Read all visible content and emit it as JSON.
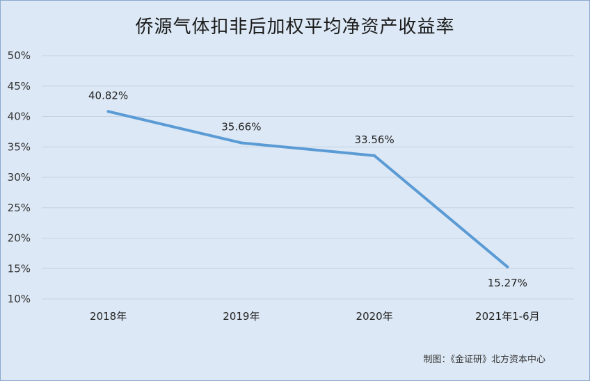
{
  "chart_data": {
    "type": "line",
    "title": "侨源气体扣非后加权平均净资产收益率",
    "categories": [
      "2018年",
      "2019年",
      "2020年",
      "2021年1-6月"
    ],
    "series": [
      {
        "values": [
          40.82,
          35.66,
          33.56,
          15.27
        ],
        "labels": [
          "40.82%",
          "35.66%",
          "33.56%",
          "15.27%"
        ]
      }
    ],
    "ylim": [
      10,
      50
    ],
    "yticks": [
      "10%",
      "15%",
      "20%",
      "25%",
      "30%",
      "35%",
      "40%",
      "45%",
      "50%"
    ],
    "ytick_values": [
      10,
      15,
      20,
      25,
      30,
      35,
      40,
      45,
      50
    ],
    "grid": true,
    "line_color": "#5b9bd5"
  },
  "source": "制图：《金证研》北方资本中心"
}
